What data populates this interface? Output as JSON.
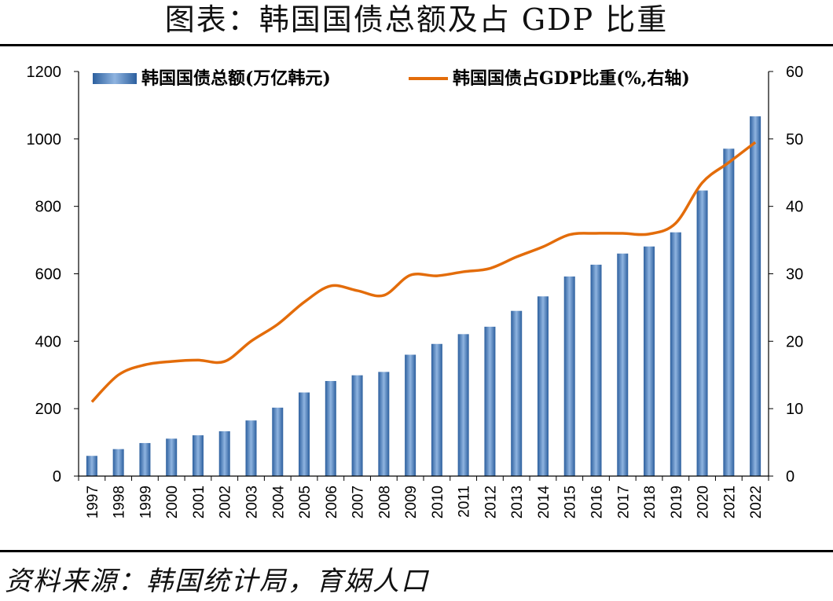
{
  "header": {
    "title": "图表：韩国国债总额及占 GDP 比重"
  },
  "footer": {
    "source": "资料来源：韩国统计局，育娲人口"
  },
  "colors": {
    "bar": "#4f85c6",
    "line": "#e36c0a",
    "axis": "#000000"
  },
  "chart_data": {
    "type": "bar+line",
    "categories": [
      "1997",
      "1998",
      "1999",
      "2000",
      "2001",
      "2002",
      "2003",
      "2004",
      "2005",
      "2006",
      "2007",
      "2008",
      "2009",
      "2010",
      "2011",
      "2012",
      "2013",
      "2014",
      "2015",
      "2016",
      "2017",
      "2018",
      "2019",
      "2020",
      "2021",
      "2022"
    ],
    "series": [
      {
        "name": "韩国国债总额(万亿韩元)",
        "type": "bar",
        "axis": "left",
        "values": [
          60,
          80,
          98,
          111,
          121,
          133,
          165,
          203,
          248,
          282,
          299,
          309,
          360,
          392,
          421,
          443,
          490,
          533,
          592,
          627,
          660,
          681,
          723,
          847,
          971,
          1067
        ]
      },
      {
        "name": "韩国国债占GDP比重(%,右轴)",
        "type": "line",
        "axis": "right",
        "values": [
          11,
          15,
          16.5,
          17,
          17.2,
          17,
          20,
          22.5,
          25.8,
          28.2,
          27.5,
          26.8,
          29.8,
          29.7,
          30.3,
          30.8,
          32.5,
          34,
          35.8,
          36,
          36,
          35.9,
          37.5,
          43.5,
          46.5,
          49.5
        ]
      }
    ],
    "left_axis": {
      "min": 0,
      "max": 1200,
      "ticks": [
        "0",
        "200",
        "400",
        "600",
        "800",
        "1000",
        "1200"
      ]
    },
    "right_axis": {
      "min": 0,
      "max": 60,
      "ticks": [
        "0",
        "10",
        "20",
        "30",
        "40",
        "50",
        "60"
      ]
    },
    "legend_position": "top",
    "grid": false
  }
}
